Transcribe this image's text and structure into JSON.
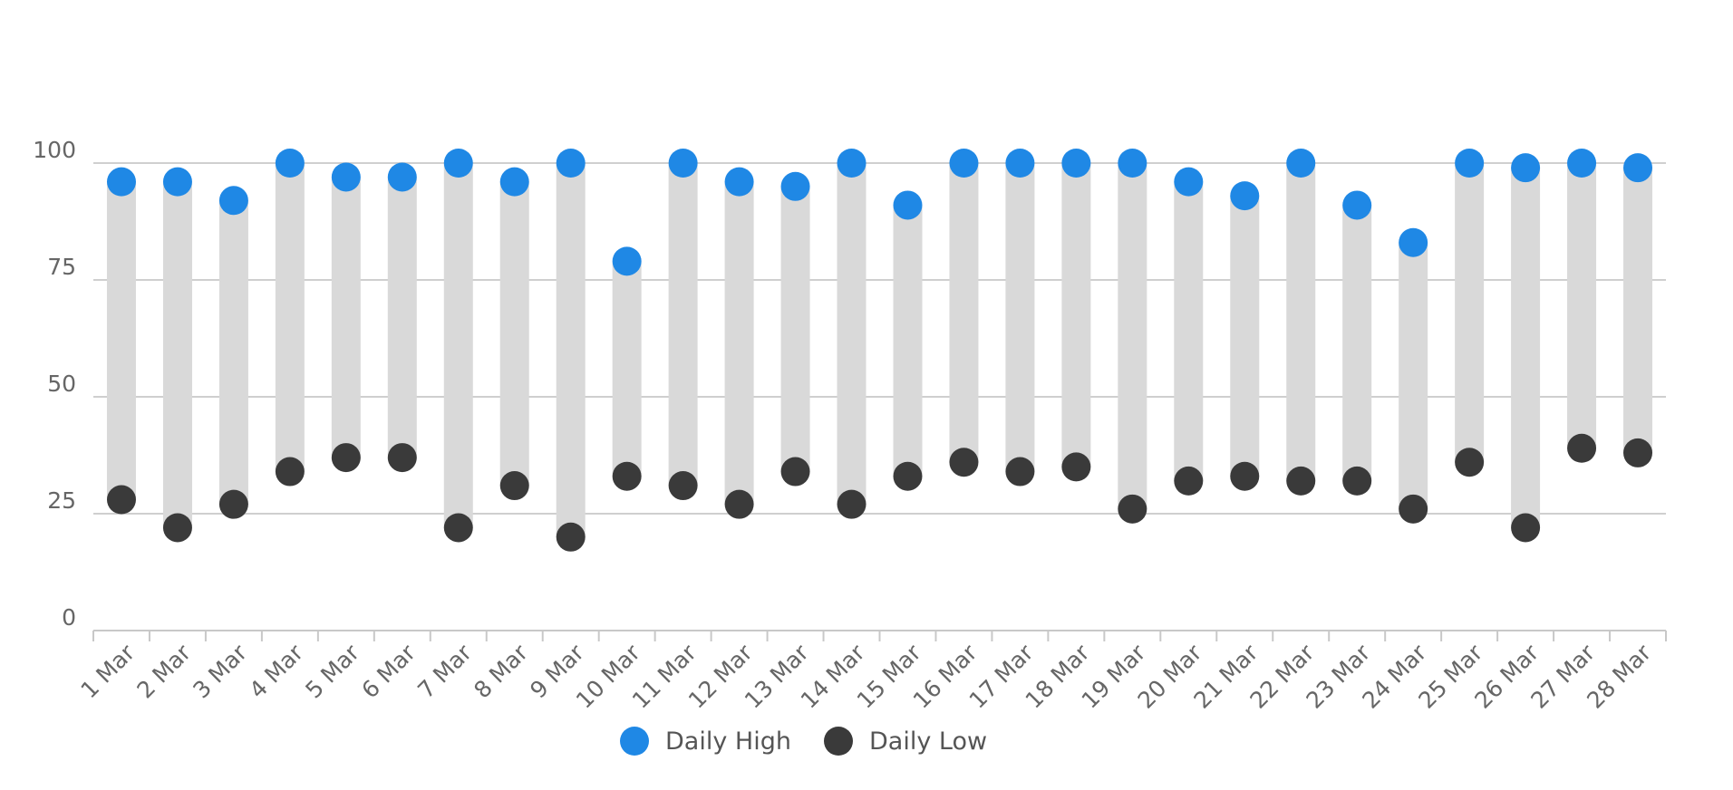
{
  "colors": {
    "high": "#1f88e5",
    "low": "#3a3a3a",
    "range": "#d9d9d9"
  },
  "chart_data": {
    "type": "dumbbell",
    "categories": [
      "1 Mar",
      "2 Mar",
      "3 Mar",
      "4 Mar",
      "5 Mar",
      "6 Mar",
      "7 Mar",
      "8 Mar",
      "9 Mar",
      "10 Mar",
      "11 Mar",
      "12 Mar",
      "13 Mar",
      "14 Mar",
      "15 Mar",
      "16 Mar",
      "17 Mar",
      "18 Mar",
      "19 Mar",
      "20 Mar",
      "21 Mar",
      "22 Mar",
      "23 Mar",
      "24 Mar",
      "25 Mar",
      "26 Mar",
      "27 Mar",
      "28 Mar"
    ],
    "series": [
      {
        "name": "Daily High",
        "values": [
          96,
          96,
          92,
          100,
          97,
          97,
          100,
          96,
          100,
          79,
          100,
          96,
          95,
          100,
          91,
          100,
          100,
          100,
          100,
          96,
          93,
          100,
          91,
          83,
          100,
          99,
          100,
          99
        ]
      },
      {
        "name": "Daily Low",
        "values": [
          28,
          22,
          27,
          34,
          37,
          37,
          22,
          31,
          20,
          33,
          31,
          27,
          34,
          27,
          33,
          36,
          34,
          35,
          26,
          32,
          33,
          32,
          32,
          26,
          36,
          22,
          39,
          38
        ]
      }
    ],
    "yticks": [
      0,
      25,
      50,
      75,
      100
    ],
    "ylim": [
      0,
      100
    ],
    "grid": true,
    "legend": "bottom-center"
  }
}
